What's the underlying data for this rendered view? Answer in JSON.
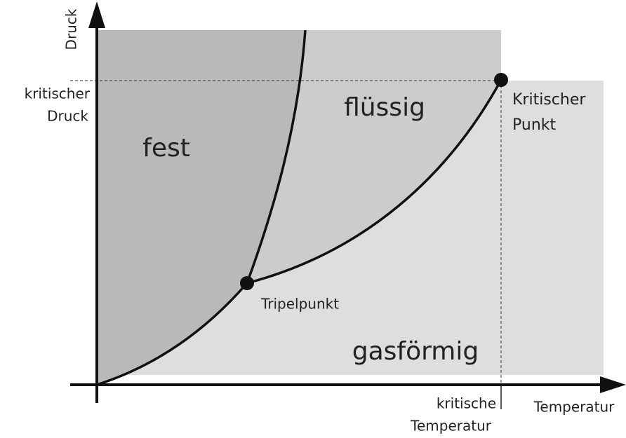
{
  "axes": {
    "y_label": "Druck",
    "x_label": "Temperatur"
  },
  "critical_pressure": [
    "kritischer",
    "Druck"
  ],
  "critical_temperature": [
    "kritische",
    "Temperatur"
  ],
  "regions": {
    "solid": "fest",
    "liquid": "flüssig",
    "gas": "gasförmig"
  },
  "points": {
    "critical": [
      "Kritischer",
      "Punkt"
    ],
    "triple": "Tripelpunkt"
  }
}
